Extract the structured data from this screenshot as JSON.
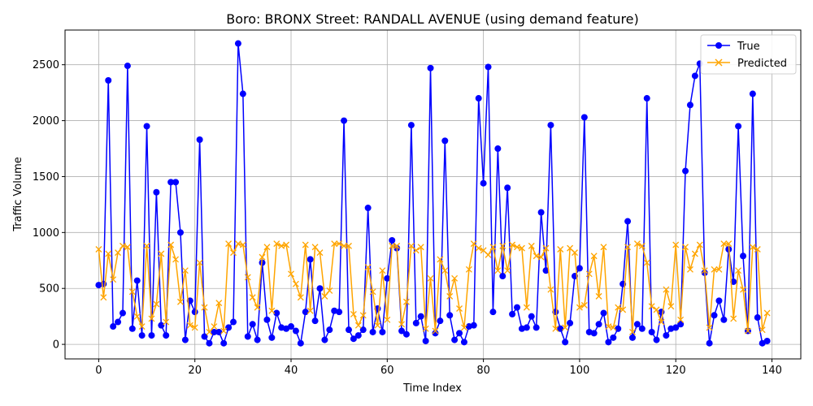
{
  "chart_data": {
    "type": "line",
    "title": "Boro: BRONX Street: RANDALL AVENUE (using demand feature)",
    "xlabel": "Time Index",
    "ylabel": "Traffic Volume",
    "xlim": [
      -7,
      146
    ],
    "ylim": [
      -130,
      2810
    ],
    "xticks": [
      0,
      20,
      40,
      60,
      80,
      100,
      120,
      140
    ],
    "yticks": [
      0,
      500,
      1000,
      1500,
      2000,
      2500
    ],
    "grid": true,
    "legend_position": "top-right",
    "series": [
      {
        "name": "True",
        "color": "#0000ff",
        "marker": "circle",
        "values": [
          530,
          540,
          2360,
          160,
          200,
          280,
          2490,
          140,
          570,
          80,
          1950,
          80,
          1360,
          170,
          80,
          1450,
          1450,
          1000,
          40,
          390,
          290,
          1830,
          70,
          10,
          110,
          110,
          10,
          150,
          200,
          2690,
          2240,
          70,
          180,
          40,
          730,
          220,
          60,
          280,
          150,
          140,
          160,
          120,
          10,
          290,
          760,
          210,
          500,
          40,
          130,
          300,
          290,
          2000,
          130,
          50,
          80,
          130,
          1220,
          110,
          320,
          110,
          590,
          930,
          860,
          120,
          90,
          1960,
          190,
          250,
          30,
          2470,
          100,
          210,
          1820,
          260,
          40,
          100,
          20,
          160,
          170,
          2200,
          1440,
          2480,
          290,
          1750,
          610,
          1400,
          270,
          330,
          140,
          150,
          250,
          150,
          1180,
          660,
          1960,
          290,
          140,
          20,
          190,
          610,
          680,
          2030,
          110,
          100,
          180,
          280,
          20,
          60,
          140,
          540,
          1100,
          60,
          180,
          140,
          2200,
          110,
          40,
          290,
          80,
          140,
          150,
          180,
          1550,
          2140,
          2400,
          2510,
          640,
          10,
          260,
          390,
          220,
          850,
          560,
          1950,
          790,
          120,
          2240,
          240,
          10,
          30
        ]
      },
      {
        "name": "Predicted",
        "color": "#ffa500",
        "marker": "x",
        "values": [
          850,
          420,
          810,
          580,
          820,
          880,
          870,
          470,
          250,
          160,
          880,
          230,
          360,
          810,
          200,
          890,
          760,
          380,
          660,
          170,
          150,
          730,
          330,
          110,
          160,
          370,
          120,
          900,
          820,
          900,
          890,
          600,
          420,
          330,
          780,
          870,
          300,
          900,
          880,
          890,
          630,
          540,
          420,
          890,
          300,
          870,
          820,
          430,
          480,
          900,
          900,
          880,
          880,
          270,
          170,
          260,
          690,
          470,
          170,
          660,
          220,
          880,
          880,
          180,
          380,
          880,
          840,
          870,
          140,
          590,
          120,
          760,
          660,
          430,
          590,
          320,
          150,
          670,
          900,
          860,
          840,
          800,
          870,
          660,
          880,
          660,
          890,
          870,
          860,
          330,
          880,
          790,
          780,
          860,
          490,
          140,
          850,
          150,
          860,
          820,
          330,
          350,
          630,
          790,
          430,
          870,
          160,
          150,
          330,
          310,
          870,
          110,
          900,
          880,
          730,
          340,
          310,
          200,
          490,
          340,
          890,
          220,
          870,
          670,
          810,
          890,
          660,
          150,
          670,
          670,
          900,
          900,
          230,
          660,
          490,
          120,
          870,
          850,
          130,
          280
        ]
      }
    ]
  }
}
